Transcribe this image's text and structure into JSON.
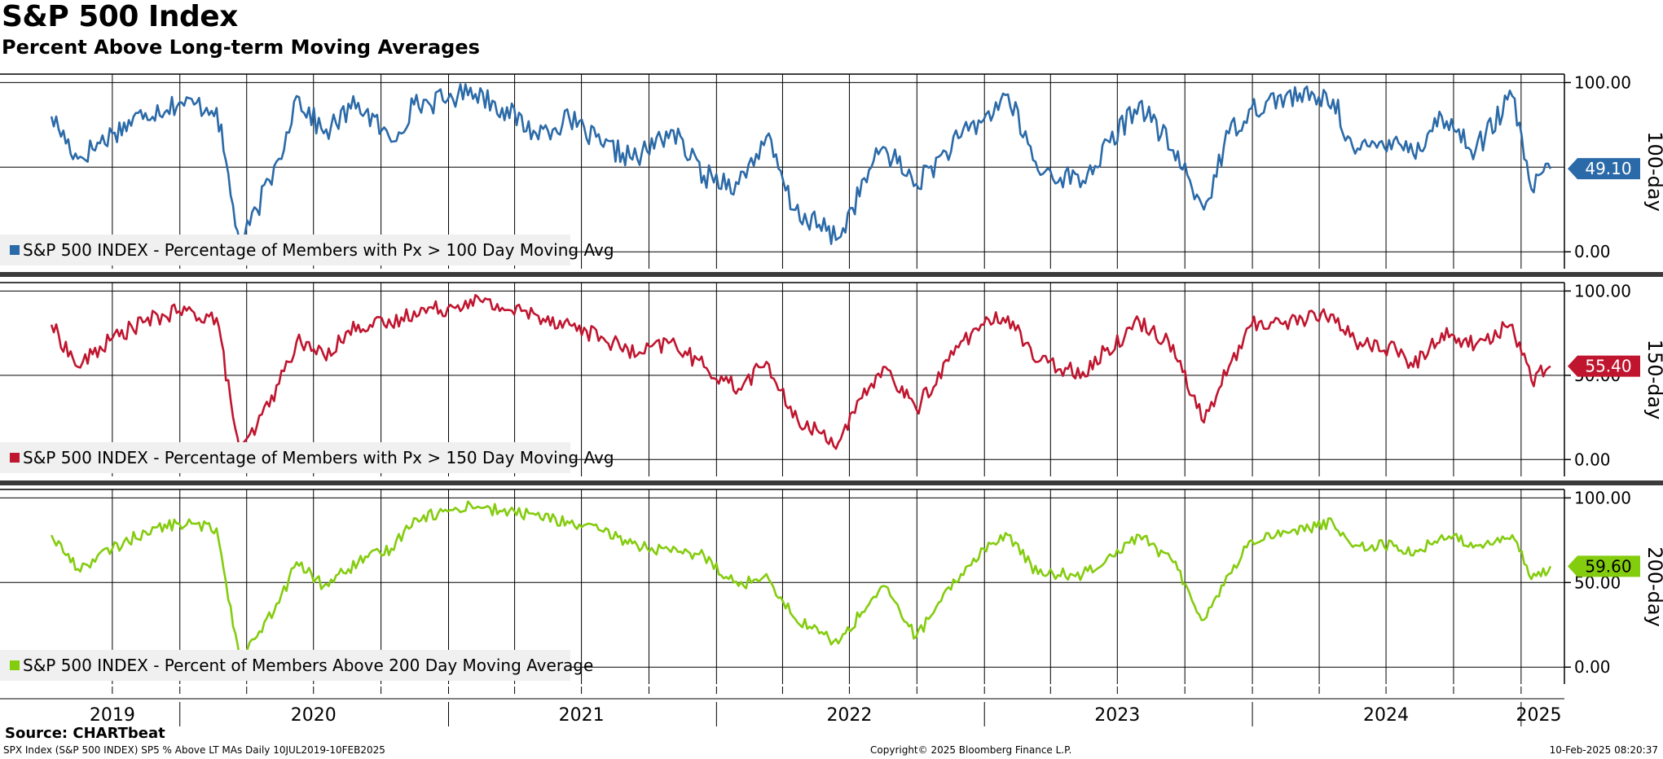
{
  "title": "S&P 500 Index",
  "subtitle": "Percent Above Long-term Moving Averages",
  "source": "Source: CHARTbeat",
  "footer": {
    "left": "SPX Index (S&P 500 INDEX) SP5 % Above LT MAs  Daily 10JUL2019-10FEB2025",
    "center": "Copyright© 2025 Bloomberg Finance L.P.",
    "right": "10-Feb-2025 08:20:37"
  },
  "colors": {
    "ma100": "#2b6aa8",
    "ma150": "#c0152f",
    "ma200": "#84cc0e"
  },
  "chart_data": [
    {
      "type": "line",
      "panel_label": "100-day",
      "legend": "S&P 500 INDEX - Percentage of Members with Px > 100 Day Moving Avg",
      "legend_placement": "bottom-left",
      "ylim": [
        -10,
        105
      ],
      "yticks": [
        "100.00",
        "0.00"
      ],
      "last_value_label": "49.10",
      "grid": true,
      "x": [
        "2019-07-10",
        "2019-08-15",
        "2019-10-01",
        "2019-11-15",
        "2019-12-31",
        "2020-02-20",
        "2020-03-23",
        "2020-04-15",
        "2020-05-15",
        "2020-06-08",
        "2020-07-15",
        "2020-08-31",
        "2020-10-15",
        "2020-11-15",
        "2020-12-31",
        "2021-01-31",
        "2021-03-15",
        "2021-04-30",
        "2021-06-15",
        "2021-07-31",
        "2021-09-15",
        "2021-10-31",
        "2021-12-15",
        "2022-01-31",
        "2022-03-10",
        "2022-04-15",
        "2022-06-16",
        "2022-07-31",
        "2022-08-16",
        "2022-09-30",
        "2022-11-30",
        "2022-12-31",
        "2023-02-02",
        "2023-03-15",
        "2023-05-15",
        "2023-07-31",
        "2023-09-15",
        "2023-10-27",
        "2023-11-30",
        "2023-12-31",
        "2024-02-15",
        "2024-04-20",
        "2024-05-20",
        "2024-07-15",
        "2024-08-07",
        "2024-09-15",
        "2024-10-31",
        "2024-12-20",
        "2025-01-15",
        "2025-02-10"
      ],
      "values": [
        80,
        55,
        70,
        82,
        88,
        85,
        2,
        25,
        55,
        92,
        70,
        88,
        65,
        87,
        90,
        97,
        85,
        70,
        78,
        62,
        55,
        72,
        45,
        40,
        68,
        25,
        8,
        50,
        62,
        40,
        68,
        78,
        93,
        48,
        42,
        88,
        60,
        25,
        70,
        85,
        92,
        90,
        58,
        68,
        58,
        80,
        60,
        92,
        37,
        49.1
      ]
    },
    {
      "type": "line",
      "panel_label": "150-day",
      "legend": "S&P 500 INDEX - Percentage of Members with Px > 150 Day Moving Avg",
      "legend_placement": "bottom-left",
      "ylim": [
        -10,
        105
      ],
      "yticks": [
        "100.00",
        "50.00",
        "0.00"
      ],
      "last_value_label": "55.40",
      "grid": true,
      "x": [
        "2019-07-10",
        "2019-08-15",
        "2019-10-01",
        "2019-11-15",
        "2019-12-31",
        "2020-02-20",
        "2020-03-23",
        "2020-04-15",
        "2020-05-15",
        "2020-06-08",
        "2020-07-15",
        "2020-08-31",
        "2020-10-15",
        "2020-11-15",
        "2020-12-31",
        "2021-01-31",
        "2021-03-15",
        "2021-04-30",
        "2021-06-15",
        "2021-07-31",
        "2021-09-15",
        "2021-10-31",
        "2021-12-15",
        "2022-01-31",
        "2022-03-10",
        "2022-04-15",
        "2022-06-16",
        "2022-07-31",
        "2022-08-16",
        "2022-09-30",
        "2022-11-30",
        "2022-12-31",
        "2023-02-02",
        "2023-03-15",
        "2023-05-15",
        "2023-07-31",
        "2023-09-15",
        "2023-10-27",
        "2023-11-30",
        "2023-12-31",
        "2024-02-15",
        "2024-04-20",
        "2024-05-20",
        "2024-07-15",
        "2024-08-07",
        "2024-09-15",
        "2024-10-31",
        "2024-12-20",
        "2025-01-15",
        "2025-02-10"
      ],
      "values": [
        80,
        55,
        72,
        82,
        88,
        84,
        3,
        20,
        45,
        70,
        62,
        80,
        80,
        88,
        90,
        95,
        90,
        86,
        80,
        72,
        62,
        70,
        55,
        42,
        58,
        25,
        10,
        45,
        55,
        30,
        70,
        80,
        85,
        58,
        52,
        82,
        68,
        22,
        55,
        80,
        82,
        86,
        70,
        65,
        55,
        75,
        68,
        80,
        47,
        55.4
      ]
    },
    {
      "type": "line",
      "panel_label": "200-day",
      "legend": "S&P 500 INDEX - Percent of Members Above 200 Day Moving Average",
      "legend_placement": "bottom-left",
      "ylim": [
        -10,
        105
      ],
      "yticks": [
        "100.00",
        "50.00",
        "0.00"
      ],
      "last_value_label": "59.60",
      "grid": true,
      "x": [
        "2019-07-10",
        "2019-08-15",
        "2019-10-01",
        "2019-11-15",
        "2019-12-31",
        "2020-02-20",
        "2020-03-23",
        "2020-04-15",
        "2020-05-15",
        "2020-06-08",
        "2020-07-15",
        "2020-08-31",
        "2020-10-15",
        "2020-11-15",
        "2020-12-31",
        "2021-01-31",
        "2021-03-15",
        "2021-04-30",
        "2021-06-15",
        "2021-07-31",
        "2021-09-15",
        "2021-10-31",
        "2021-12-15",
        "2022-01-31",
        "2022-03-10",
        "2022-04-15",
        "2022-06-16",
        "2022-07-31",
        "2022-08-16",
        "2022-09-30",
        "2022-11-30",
        "2022-12-31",
        "2023-02-02",
        "2023-03-15",
        "2023-05-15",
        "2023-07-31",
        "2023-09-15",
        "2023-10-27",
        "2023-11-30",
        "2023-12-31",
        "2024-02-15",
        "2024-04-20",
        "2024-05-20",
        "2024-07-15",
        "2024-08-07",
        "2024-09-15",
        "2024-10-31",
        "2024-12-20",
        "2025-01-15",
        "2025-02-10"
      ],
      "values": [
        78,
        58,
        70,
        80,
        85,
        82,
        4,
        18,
        38,
        62,
        48,
        62,
        70,
        88,
        92,
        96,
        92,
        90,
        85,
        80,
        72,
        68,
        66,
        48,
        55,
        30,
        14,
        40,
        48,
        18,
        55,
        70,
        78,
        55,
        55,
        78,
        62,
        28,
        55,
        75,
        80,
        85,
        72,
        72,
        66,
        78,
        72,
        78,
        52,
        59.6
      ]
    }
  ],
  "x_axis": {
    "years": [
      {
        "label": "2019",
        "date": "2019-10-01"
      },
      {
        "label": "2020",
        "date": "2020-07-01"
      },
      {
        "label": "2021",
        "date": "2021-07-01"
      },
      {
        "label": "2022",
        "date": "2022-07-01"
      },
      {
        "label": "2023",
        "date": "2023-07-01"
      },
      {
        "label": "2024",
        "date": "2024-07-01"
      },
      {
        "label": "2025",
        "date": "2025-01-25"
      }
    ],
    "year_starts": [
      "2020-01-01",
      "2021-01-01",
      "2022-01-01",
      "2023-01-01",
      "2024-01-01",
      "2025-01-01"
    ],
    "gridlines": [
      "2019-10-01",
      "2020-01-01",
      "2020-04-01",
      "2020-07-01",
      "2020-10-01",
      "2021-01-01",
      "2021-04-01",
      "2021-07-01",
      "2021-10-01",
      "2022-01-01",
      "2022-04-01",
      "2022-07-01",
      "2022-10-01",
      "2023-01-01",
      "2023-04-01",
      "2023-07-01",
      "2023-10-01",
      "2024-01-01",
      "2024-04-01",
      "2024-07-01",
      "2024-10-01",
      "2025-01-01"
    ]
  }
}
